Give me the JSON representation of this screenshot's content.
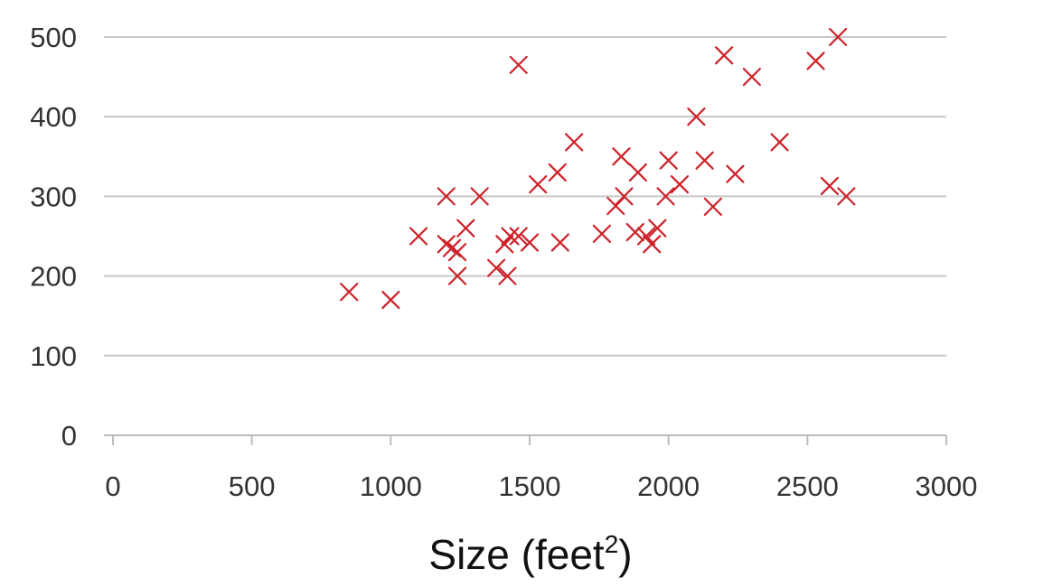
{
  "chart_data": {
    "type": "scatter",
    "title": "",
    "xlabel": "Size (feet",
    "xlabel_sup": "2",
    "xlabel_close": ")",
    "ylabel": "",
    "xlim": [
      0,
      3000
    ],
    "ylim": [
      0,
      500
    ],
    "xticks": [
      0,
      500,
      1000,
      1500,
      2000,
      2500,
      3000
    ],
    "yticks": [
      0,
      100,
      200,
      300,
      400,
      500
    ],
    "xtick_labels": [
      "0",
      "500",
      "1000",
      "1500",
      "2000",
      "2500",
      "3000"
    ],
    "ytick_labels": [
      "0",
      "100",
      "200",
      "300",
      "400",
      "500"
    ],
    "grid": "horizontal",
    "marker": "x",
    "marker_color": "#cc2229",
    "grid_color": "#c8c8c8",
    "axis_color": "#bdbdbd",
    "series": [
      {
        "points": [
          [
            850,
            180
          ],
          [
            1000,
            170
          ],
          [
            1100,
            250
          ],
          [
            1200,
            300
          ],
          [
            1200,
            240
          ],
          [
            1220,
            235
          ],
          [
            1240,
            230
          ],
          [
            1240,
            200
          ],
          [
            1270,
            260
          ],
          [
            1320,
            300
          ],
          [
            1380,
            210
          ],
          [
            1410,
            240
          ],
          [
            1420,
            200
          ],
          [
            1430,
            250
          ],
          [
            1460,
            250
          ],
          [
            1460,
            465
          ],
          [
            1500,
            242
          ],
          [
            1530,
            315
          ],
          [
            1600,
            330
          ],
          [
            1610,
            242
          ],
          [
            1660,
            368
          ],
          [
            1760,
            253
          ],
          [
            1810,
            288
          ],
          [
            1830,
            350
          ],
          [
            1840,
            300
          ],
          [
            1880,
            255
          ],
          [
            1890,
            330
          ],
          [
            1920,
            250
          ],
          [
            1940,
            240
          ],
          [
            1960,
            260
          ],
          [
            1990,
            300
          ],
          [
            2000,
            345
          ],
          [
            2040,
            315
          ],
          [
            2100,
            400
          ],
          [
            2130,
            345
          ],
          [
            2160,
            287
          ],
          [
            2200,
            477
          ],
          [
            2240,
            328
          ],
          [
            2300,
            450
          ],
          [
            2400,
            368
          ],
          [
            2530,
            470
          ],
          [
            2580,
            313
          ],
          [
            2610,
            500
          ],
          [
            2640,
            300
          ]
        ]
      }
    ]
  }
}
